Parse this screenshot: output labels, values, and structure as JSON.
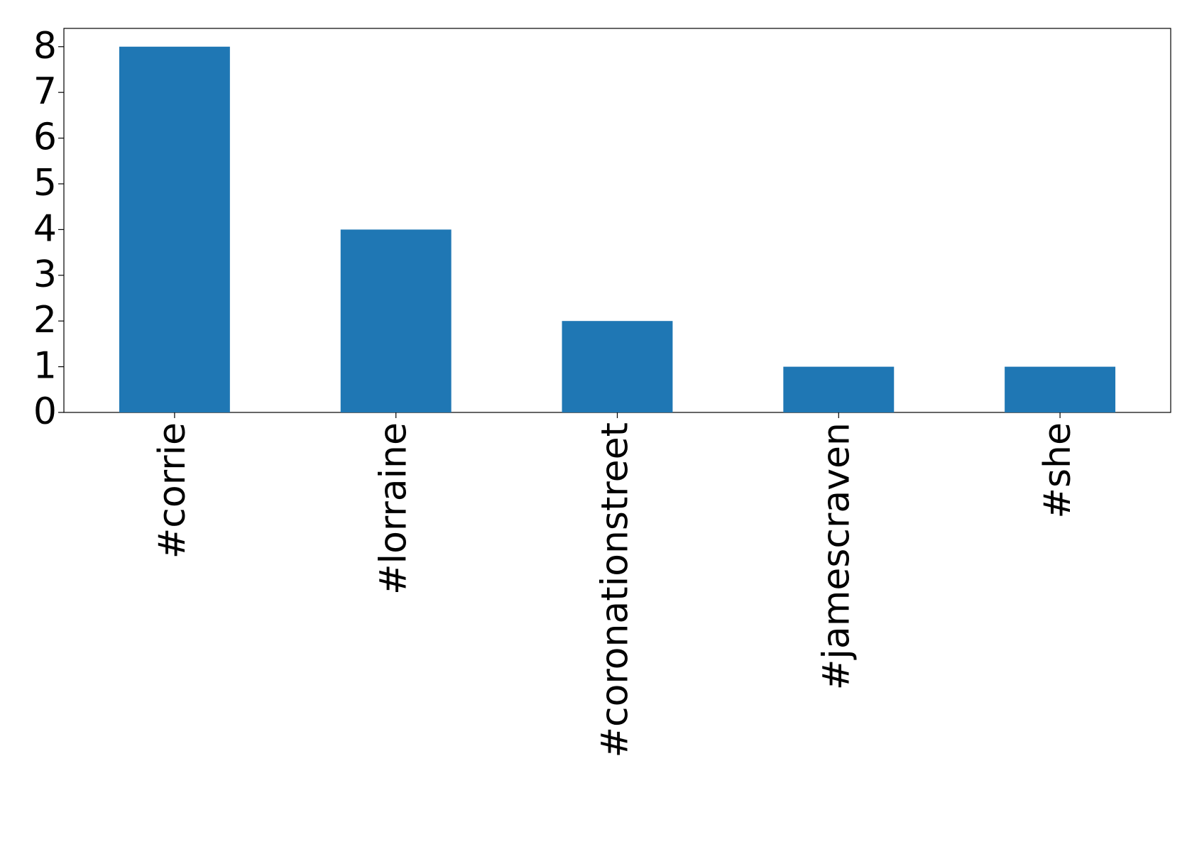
{
  "chart_data": {
    "type": "bar",
    "categories": [
      "#corrie",
      "#lorraine",
      "#coronationstreet",
      "#jamescraven",
      "#she"
    ],
    "values": [
      8,
      4,
      2,
      1,
      1
    ],
    "color": "#1f77b4",
    "ylim": [
      0,
      8.4
    ],
    "yticks": [
      0,
      1,
      2,
      3,
      4,
      5,
      6,
      7,
      8
    ],
    "grid": false
  }
}
